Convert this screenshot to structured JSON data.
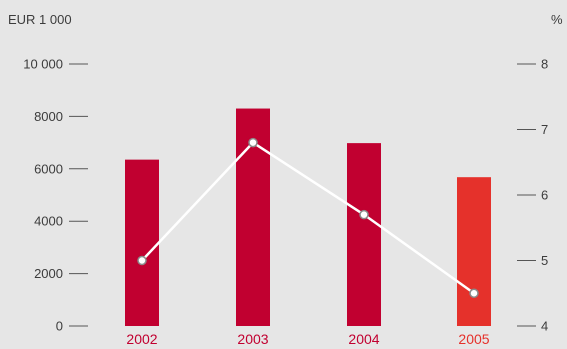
{
  "chart_data": {
    "type": "bar",
    "categories": [
      "2002",
      "2003",
      "2004",
      "2005"
    ],
    "series": [
      {
        "values": [
          6350,
          8300,
          6980,
          5680
        ],
        "axis": "left",
        "kind": "bar"
      },
      {
        "values": [
          5.0,
          6.8,
          5.7,
          4.5
        ],
        "axis": "right",
        "kind": "line"
      }
    ],
    "left_axis": {
      "unit": "EUR 1 000",
      "ylim": [
        0,
        10000
      ],
      "ticks": [
        0,
        2000,
        4000,
        6000,
        8000,
        10000
      ],
      "tick_labels": [
        "0",
        "2000",
        "4000",
        "6000",
        "8000",
        "10 000"
      ]
    },
    "right_axis": {
      "unit": "%",
      "ylim": [
        4,
        8
      ],
      "ticks": [
        4,
        5,
        6,
        7,
        8
      ],
      "tick_labels": [
        "4",
        "5",
        "6",
        "7",
        "8"
      ]
    },
    "grid": false,
    "colors": {
      "bar": "#c10030",
      "bar_highlight": "#e5312b",
      "line": "#ffffff",
      "marker_stroke": "#8a8a8a",
      "category_label": "#c10030",
      "category_label_highlight": "#e5312b",
      "background": "#e6e6e6"
    },
    "highlight_index": 3
  }
}
